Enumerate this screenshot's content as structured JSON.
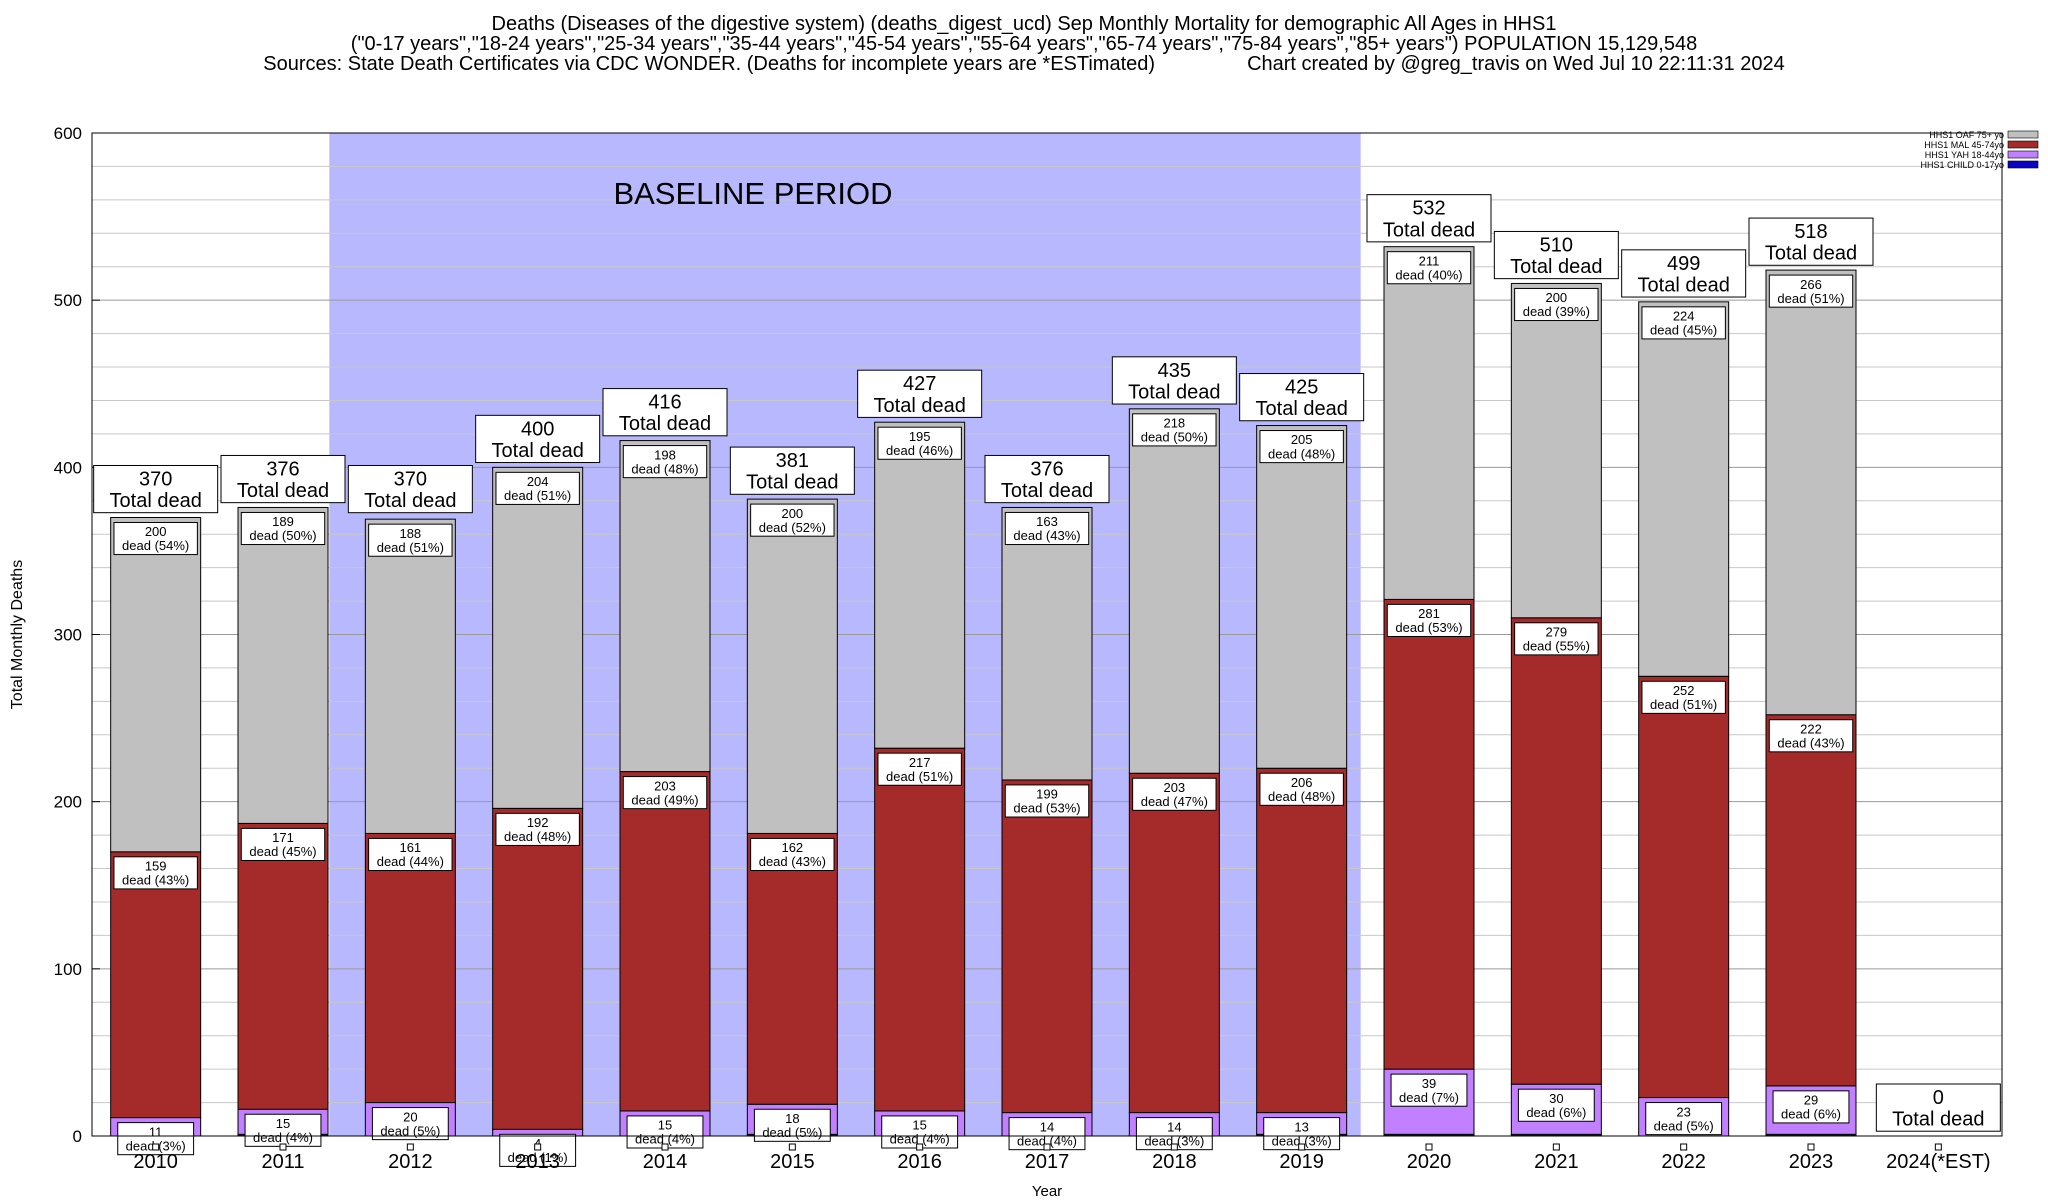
{
  "header": {
    "line1": "Deaths (Diseases of the digestive system) (deaths_digest_ucd) Sep Monthly Mortality for demographic All Ages in HHS1",
    "line2": "(\"0-17 years\",\"18-24 years\",\"25-34 years\",\"35-44 years\",\"45-54 years\",\"55-64 years\",\"65-74 years\",\"75-84 years\",\"85+ years\") POPULATION 15,129,548",
    "line3_left": "Sources: State Death Certificates via CDC WONDER. (Deaths for incomplete years are *ESTimated)",
    "line3_right": "Chart created by @greg_travis on Wed Jul 10 22:11:31 2024"
  },
  "chart_data": {
    "type": "bar",
    "stacked": true,
    "xlabel": "Year",
    "ylabel": "Total Monthly Deaths",
    "ylim": [
      0,
      600
    ],
    "yticks": [
      0,
      100,
      200,
      300,
      400,
      500,
      600
    ],
    "grid": true,
    "legend_position": "top-right",
    "annotation": "BASELINE PERIOD",
    "baseline_range": [
      "2012",
      "2019"
    ],
    "categories": [
      "2010",
      "2011",
      "2012",
      "2013",
      "2014",
      "2015",
      "2016",
      "2017",
      "2018",
      "2019",
      "2020",
      "2021",
      "2022",
      "2023",
      "2024(*EST)"
    ],
    "series": [
      {
        "name": "HHS1 CHILD 0-17yo",
        "color": "#0a00c8",
        "values": [
          0,
          1,
          0,
          0,
          0,
          1,
          0,
          0,
          0,
          1,
          1,
          1,
          0,
          1,
          0
        ]
      },
      {
        "name": "HHS1 YAH 18-44yo",
        "color": "#c080ff",
        "values": [
          11,
          15,
          20,
          4,
          15,
          18,
          15,
          14,
          14,
          13,
          39,
          30,
          23,
          29,
          0
        ],
        "labels": [
          "11\ndead (3%)",
          "15\ndead (4%)",
          "20\ndead (5%)",
          "4\ndead (1%)",
          "15\ndead (4%)",
          "18\ndead (5%)",
          "15\ndead (4%)",
          "14\ndead (4%)",
          "14\ndead (3%)",
          "13\ndead (3%)",
          "39\ndead (7%)",
          "30\ndead (6%)",
          "23\ndead (5%)",
          "29\ndead (6%)",
          ""
        ]
      },
      {
        "name": "HHS1 MAL 45-74yo",
        "color": "#a52a2a",
        "values": [
          159,
          171,
          161,
          192,
          203,
          162,
          217,
          199,
          203,
          206,
          281,
          279,
          252,
          222,
          0
        ],
        "labels": [
          "159\ndead (43%)",
          "171\ndead (45%)",
          "161\ndead (44%)",
          "192\ndead (48%)",
          "203\ndead (49%)",
          "162\ndead (43%)",
          "217\ndead (51%)",
          "199\ndead (53%)",
          "203\ndead (47%)",
          "206\ndead (48%)",
          "281\ndead (53%)",
          "279\ndead (55%)",
          "252\ndead (51%)",
          "222\ndead (43%)",
          ""
        ]
      },
      {
        "name": "HHS1 OAF 75+ yo",
        "color": "#c0c0c0",
        "values": [
          200,
          189,
          188,
          204,
          198,
          200,
          195,
          163,
          218,
          205,
          211,
          200,
          224,
          266,
          0
        ],
        "labels": [
          "200\ndead (54%)",
          "189\ndead (50%)",
          "188\ndead (51%)",
          "204\ndead (51%)",
          "198\ndead (48%)",
          "200\ndead (52%)",
          "195\ndead (46%)",
          "163\ndead (43%)",
          "218\ndead (50%)",
          "205\ndead (48%)",
          "211\ndead (40%)",
          "200\ndead (39%)",
          "224\ndead (45%)",
          "266\ndead (51%)",
          ""
        ]
      }
    ],
    "totals": [
      370,
      376,
      370,
      400,
      416,
      381,
      427,
      376,
      435,
      425,
      532,
      510,
      499,
      518,
      0
    ],
    "total_label_suffix": "Total dead"
  }
}
